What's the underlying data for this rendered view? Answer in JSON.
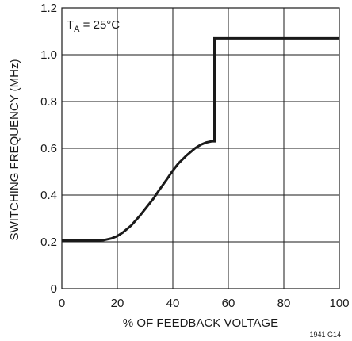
{
  "chart_data": {
    "type": "line",
    "title": "",
    "xlabel": "% OF FEEDBACK VOLTAGE",
    "ylabel": "SWITCHING FREQUENCY (MHz)",
    "xlim": [
      0,
      100
    ],
    "ylim": [
      0,
      1.2
    ],
    "x_ticks": [
      "0",
      "20",
      "40",
      "60",
      "80",
      "100"
    ],
    "y_ticks": [
      "0",
      "0.2",
      "0.4",
      "0.6",
      "0.8",
      "1.0",
      "1.2"
    ],
    "grid": true,
    "annotation": {
      "main": "T",
      "sub": "A",
      "rest": " = 25°C"
    },
    "figure_id": "1941 G14",
    "series": [
      {
        "x": [
          0,
          10,
          15,
          18,
          20,
          22,
          25,
          28,
          30,
          33,
          35,
          38,
          40,
          42,
          45,
          48,
          50,
          52,
          54,
          55,
          55,
          60,
          70,
          80,
          90,
          100
        ],
        "y": [
          0.205,
          0.205,
          0.207,
          0.215,
          0.225,
          0.24,
          0.27,
          0.31,
          0.34,
          0.385,
          0.42,
          0.47,
          0.505,
          0.535,
          0.57,
          0.6,
          0.615,
          0.625,
          0.63,
          0.63,
          1.07,
          1.07,
          1.07,
          1.07,
          1.07,
          1.07
        ]
      }
    ]
  }
}
